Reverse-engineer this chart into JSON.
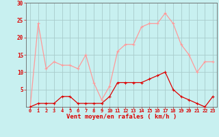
{
  "x": [
    0,
    1,
    2,
    3,
    4,
    5,
    6,
    7,
    8,
    9,
    10,
    11,
    12,
    13,
    14,
    15,
    16,
    17,
    18,
    19,
    20,
    21,
    22,
    23
  ],
  "vent_moyen": [
    0,
    1,
    1,
    1,
    3,
    3,
    1,
    1,
    1,
    1,
    3,
    7,
    7,
    7,
    7,
    8,
    9,
    10,
    5,
    3,
    2,
    1,
    0,
    3
  ],
  "rafales": [
    0,
    24,
    11,
    13,
    12,
    12,
    11,
    15,
    7,
    2,
    6,
    16,
    18,
    18,
    23,
    24,
    24,
    27,
    24,
    18,
    15,
    10,
    13,
    13
  ],
  "bg_color": "#c8f0f0",
  "grid_color": "#a8cccc",
  "line_moyen_color": "#dd0000",
  "line_rafales_color": "#ff9999",
  "xlabel": "Vent moyen/en rafales ( km/h )",
  "ylim": [
    0,
    30
  ],
  "xlim": [
    -0.5,
    23.5
  ],
  "yticks": [
    5,
    10,
    15,
    20,
    25,
    30
  ],
  "xticks": [
    0,
    1,
    2,
    3,
    4,
    5,
    6,
    7,
    8,
    9,
    10,
    11,
    12,
    13,
    14,
    15,
    16,
    17,
    18,
    19,
    20,
    21,
    22,
    23
  ],
  "xlabel_color": "#dd0000",
  "tick_color": "#dd0000",
  "marker_size": 2.5,
  "line_width": 0.9,
  "font_size_tick": 5.0,
  "font_size_xlabel": 6.5
}
